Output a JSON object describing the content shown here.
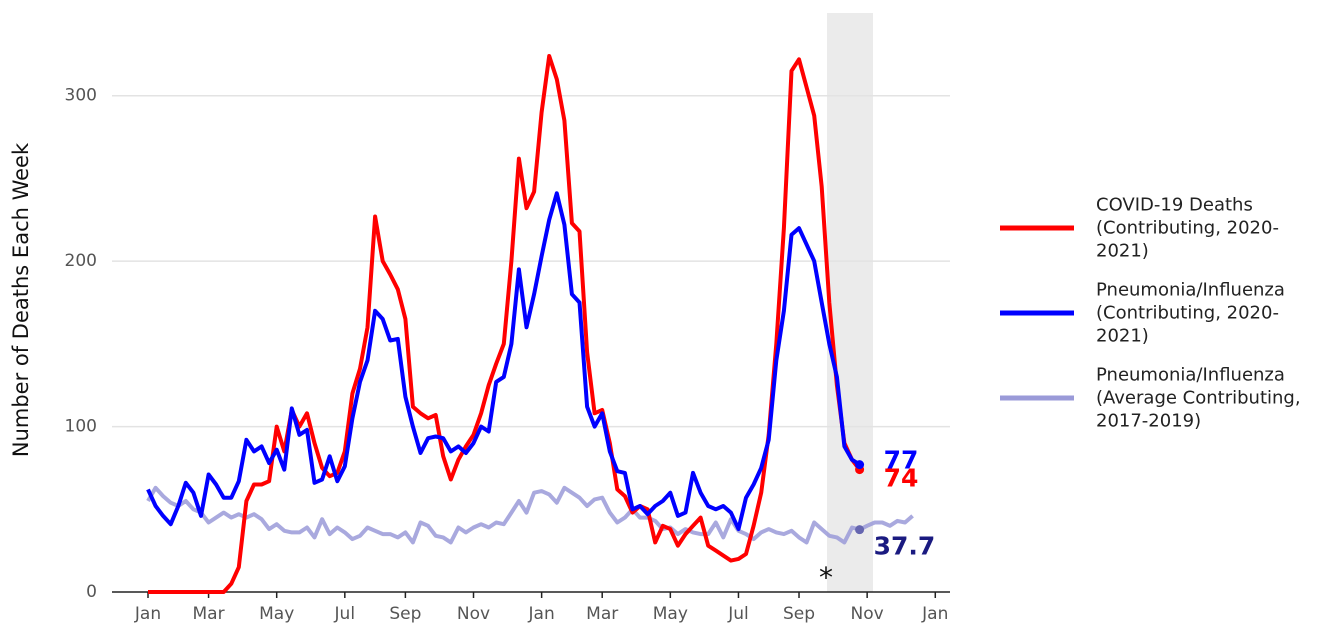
{
  "chart_data": {
    "type": "line",
    "y_label": "Number of Deaths Each Week",
    "annotation": "*",
    "categories": [
      "Jan",
      null,
      null,
      null,
      null,
      null,
      null,
      null,
      "Mar",
      null,
      null,
      null,
      null,
      null,
      null,
      null,
      null,
      "May",
      null,
      null,
      null,
      null,
      null,
      null,
      null,
      null,
      "Jul",
      null,
      null,
      null,
      null,
      null,
      null,
      null,
      "Sep",
      null,
      null,
      null,
      null,
      null,
      null,
      null,
      null,
      "Nov",
      null,
      null,
      null,
      null,
      null,
      null,
      null,
      null,
      "Jan",
      null,
      null,
      null,
      null,
      null,
      null,
      null,
      "Mar",
      null,
      null,
      null,
      null,
      null,
      null,
      null,
      null,
      "May",
      null,
      null,
      null,
      null,
      null,
      null,
      null,
      null,
      "Jul",
      null,
      null,
      null,
      null,
      null,
      null,
      null,
      "Sep",
      null,
      null,
      null,
      null,
      null,
      null,
      null,
      null,
      "Nov",
      null,
      null,
      null,
      null,
      null,
      null,
      null,
      null,
      "Jan"
    ],
    "series": [
      {
        "name": "COVID-19 Deaths (Contributing, 2020-2021)",
        "color": "#ff0000",
        "values": [
          0,
          0,
          0,
          0,
          0,
          0,
          0,
          0,
          0,
          0,
          0,
          5,
          15,
          55,
          65,
          65,
          67,
          100,
          85,
          110,
          100,
          108,
          90,
          75,
          70,
          72,
          85,
          120,
          135,
          160,
          227,
          200,
          192,
          183,
          165,
          112,
          108,
          105,
          107,
          82,
          68,
          80,
          88,
          95,
          108,
          125,
          138,
          150,
          200,
          262,
          232,
          242,
          290,
          324,
          310,
          285,
          223,
          218,
          145,
          108,
          110,
          90,
          62,
          58,
          48,
          52,
          50,
          30,
          40,
          38,
          28,
          35,
          40,
          45,
          28,
          25,
          22,
          19,
          20,
          23,
          40,
          60,
          95,
          150,
          220,
          315,
          322,
          305,
          288,
          245,
          175,
          125,
          90,
          80,
          74,
          null,
          null,
          null,
          null,
          null,
          null,
          null,
          null,
          null,
          null
        ]
      },
      {
        "name": "Pneumonia/Influenza (Contributing, 2020-2021)",
        "color": "#0000ff",
        "values": [
          62,
          52,
          46,
          41,
          52,
          66,
          60,
          46,
          71,
          65,
          57,
          57,
          67,
          92,
          85,
          88,
          78,
          86,
          74,
          111,
          95,
          98,
          66,
          68,
          82,
          67,
          76,
          105,
          127,
          140,
          170,
          165,
          152,
          153,
          118,
          100,
          84,
          93,
          94,
          93,
          85,
          88,
          84,
          90,
          100,
          97,
          127,
          130,
          150,
          195,
          160,
          180,
          203,
          225,
          241,
          222,
          180,
          175,
          112,
          100,
          108,
          85,
          73,
          72,
          50,
          52,
          47,
          52,
          55,
          60,
          46,
          48,
          72,
          60,
          52,
          50,
          52,
          48,
          38,
          57,
          65,
          75,
          92,
          140,
          170,
          216,
          220,
          210,
          200,
          175,
          150,
          130,
          88,
          80,
          77,
          null,
          null,
          null,
          null,
          null,
          null,
          null,
          null,
          null,
          null
        ]
      },
      {
        "name": "Pneumonia/Influenza (Average Contributing, 2017-2019)",
        "color": "#9a9ad8",
        "values": [
          55,
          63,
          58,
          54,
          52,
          55,
          50,
          48,
          42,
          45,
          48,
          45,
          47,
          45,
          47,
          44,
          38,
          41,
          37,
          36,
          36,
          39,
          33,
          44,
          35,
          39,
          36,
          32,
          34,
          39,
          37,
          35,
          35,
          33,
          36,
          30,
          42,
          40,
          34,
          33,
          30,
          39,
          36,
          39,
          41,
          39,
          42,
          41,
          48,
          55,
          48,
          60,
          61,
          59,
          54,
          63,
          60,
          57,
          52,
          56,
          57,
          48,
          42,
          45,
          50,
          45,
          45,
          43,
          38,
          39,
          35,
          38,
          36,
          35,
          35,
          42,
          33,
          44,
          37,
          35,
          32,
          36,
          38,
          36,
          35,
          37,
          33,
          30,
          42,
          38,
          34,
          33,
          30,
          39,
          37.7,
          40,
          42,
          42,
          40,
          43,
          42,
          46,
          null,
          null,
          null
        ]
      }
    ],
    "ylim": [
      0,
      350
    ],
    "yticks": [
      0,
      100,
      200,
      300
    ],
    "grid": true
  }
}
